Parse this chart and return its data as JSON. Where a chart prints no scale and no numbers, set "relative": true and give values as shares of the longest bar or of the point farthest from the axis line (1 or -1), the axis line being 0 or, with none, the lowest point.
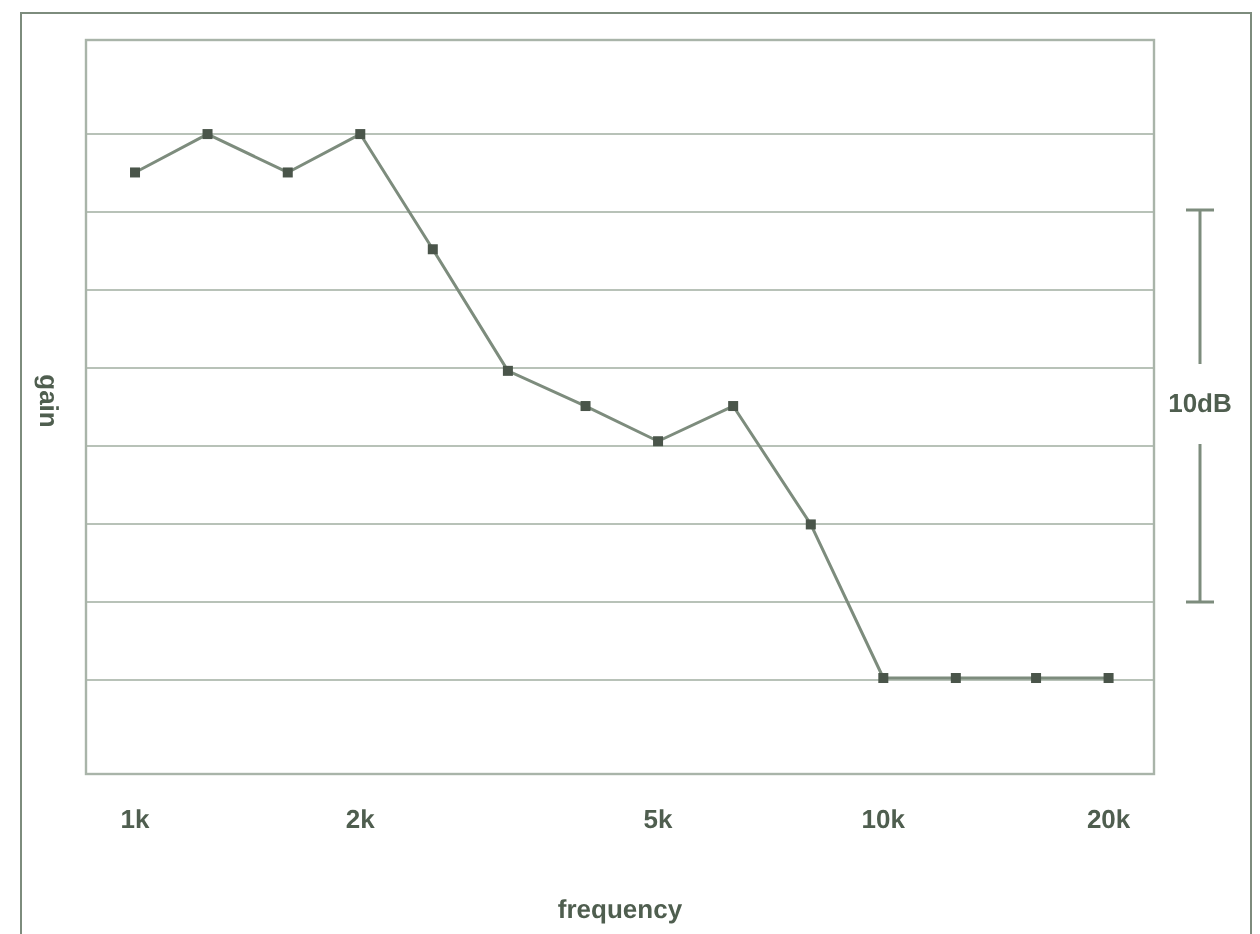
{
  "chart_data": {
    "type": "line",
    "xlabel": "frequency",
    "ylabel": "gain",
    "relative": true,
    "log": "x",
    "grid": "y",
    "marker": "square",
    "line_style": "solid",
    "x": [
      1000,
      1250,
      1600,
      2000,
      2500,
      3150,
      4000,
      5000,
      6300,
      8000,
      10000,
      12500,
      16000,
      20000
    ],
    "xlim": [
      860,
      23000
    ],
    "xticks": [
      {
        "value": 1000,
        "label": "1k"
      },
      {
        "value": 2000,
        "label": "2k"
      },
      {
        "value": 5000,
        "label": "5k"
      },
      {
        "value": 10000,
        "label": "10k"
      },
      {
        "value": 20000,
        "label": "20k"
      }
    ],
    "series": [
      {
        "color": "#7d8c7d",
        "values": [
          0.94,
          1,
          0.94,
          1,
          0.82,
          0.63,
          0.575,
          0.52,
          0.575,
          0.39,
          0.15,
          0.15,
          0.15,
          0.15
        ]
      }
    ],
    "annotations": [
      "10dB"
    ]
  }
}
